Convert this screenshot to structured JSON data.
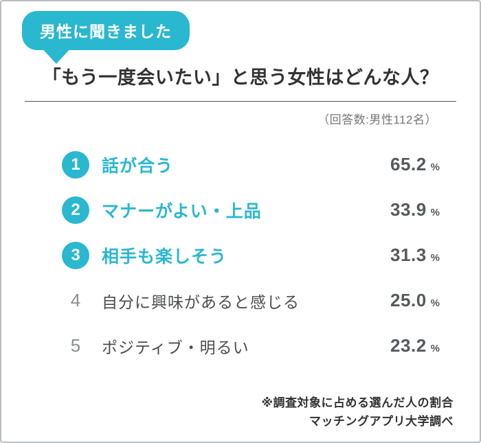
{
  "accent_color": "#29b8d0",
  "badge": {
    "label": "男性に聞きました"
  },
  "title": "「もう一度会いたい」と思う女性はどんな人？",
  "respondents_note": "（回答数:男性112名）",
  "percent_sign": "%",
  "ranking": [
    {
      "rank": "1",
      "label": "話が合う",
      "value": "65.2",
      "highlighted": true
    },
    {
      "rank": "2",
      "label": "マナーがよい・上品",
      "value": "33.9",
      "highlighted": true
    },
    {
      "rank": "3",
      "label": "相手も楽しそう",
      "value": "31.3",
      "highlighted": true
    },
    {
      "rank": "4",
      "label": "自分に興味があると感じる",
      "value": "25.0",
      "highlighted": false
    },
    {
      "rank": "5",
      "label": "ポジティブ・明るい",
      "value": "23.2",
      "highlighted": false
    }
  ],
  "footnotes": [
    "※調査対象に占める選んだ人の割合",
    "マッチングアプリ大学調べ"
  ],
  "chart_data": {
    "type": "table",
    "title": "「もう一度会いたい」と思う女性はどんな人？",
    "subtitle": "男性に聞きました",
    "sample": "回答数:男性112名",
    "categories": [
      "話が合う",
      "マナーがよい・上品",
      "相手も楽しそう",
      "自分に興味があると感じる",
      "ポジティブ・明るい"
    ],
    "values": [
      65.2,
      33.9,
      31.3,
      25.0,
      23.2
    ],
    "unit": "%",
    "notes": [
      "※調査対象に占める選んだ人の割合",
      "マッチングアプリ大学調べ"
    ]
  }
}
